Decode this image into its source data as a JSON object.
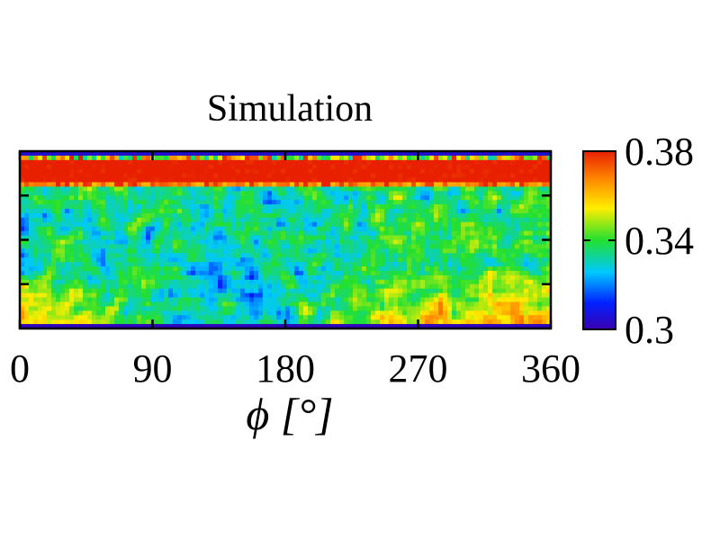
{
  "chart_data": {
    "type": "heatmap",
    "title": "Simulation",
    "xlabel": "ϕ [°]",
    "ylabel": "",
    "xlim": [
      0,
      360
    ],
    "x_ticks": [
      0,
      90,
      180,
      270,
      360
    ],
    "x_tick_labels": [
      "0",
      "90",
      "180",
      "270",
      "360"
    ],
    "y_ticks_count": 3,
    "colorbar": {
      "min": 0.3,
      "max": 0.38,
      "ticks": [
        0.3,
        0.34,
        0.38
      ],
      "tick_labels": [
        "0.3",
        "0.34",
        "0.38"
      ],
      "colormap": "rainbow",
      "colors": [
        "#2200aa",
        "#0033ff",
        "#00ccff",
        "#22dd22",
        "#ffee00",
        "#ff8800",
        "#ee2200"
      ]
    },
    "grid": false,
    "description_pattern": {
      "band_top": 0.38,
      "mid_region": 0.335,
      "bottom_region": 0.35
    }
  }
}
